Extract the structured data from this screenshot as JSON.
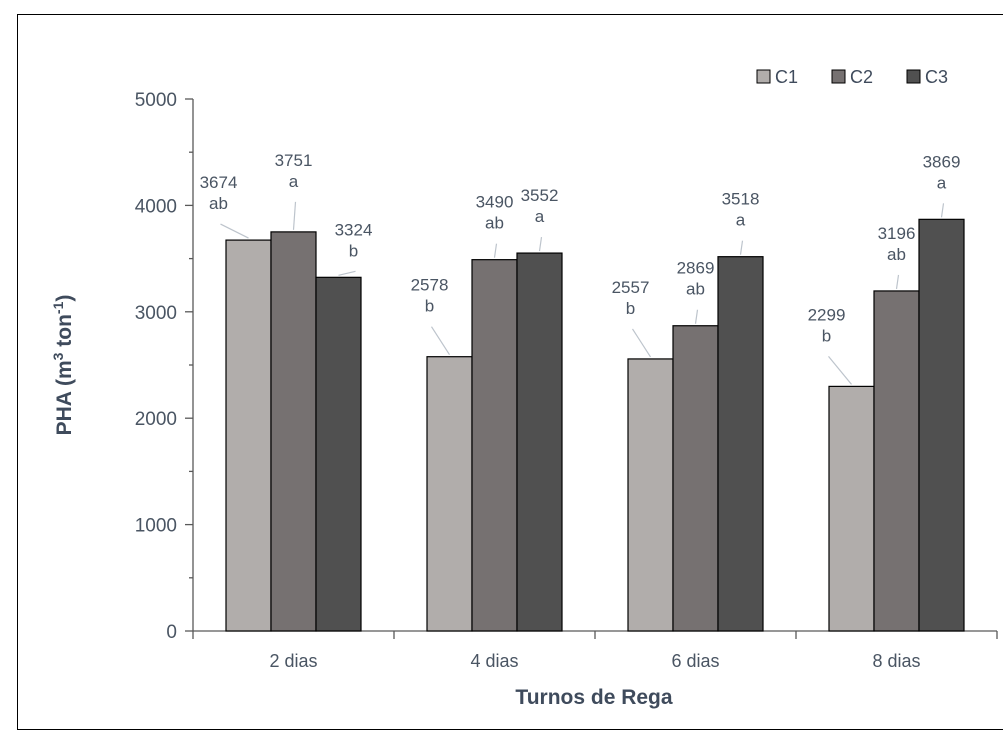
{
  "chart_data": {
    "type": "bar",
    "categories": [
      "2 dias",
      "4 dias",
      "6 dias",
      "8 dias"
    ],
    "series": [
      {
        "name": "C1",
        "values": [
          3674,
          2578,
          2557,
          2299
        ],
        "letters": [
          "ab",
          "b",
          "b",
          "b"
        ],
        "color": "#b1adab"
      },
      {
        "name": "C2",
        "values": [
          3751,
          3490,
          2869,
          3196
        ],
        "letters": [
          "a",
          "ab",
          "ab",
          "ab"
        ],
        "color": "#767171"
      },
      {
        "name": "C3",
        "values": [
          3324,
          3552,
          3518,
          3869
        ],
        "letters": [
          "b",
          "a",
          "a",
          "a"
        ],
        "color": "#505050"
      }
    ],
    "xlabel": "Turnos de Rega",
    "ylabel": "PHA (m³ ton⁻¹)",
    "ylabel_parts": {
      "pre": "PHA (m",
      "sup1": "3",
      "mid": " ton",
      "sup2": "-1",
      "post": ")"
    },
    "ylim": [
      0,
      5000
    ],
    "yticks": [
      "0",
      "1000",
      "2000",
      "3000",
      "4000",
      "5000"
    ],
    "grid": false,
    "legend_position": "top-right"
  }
}
